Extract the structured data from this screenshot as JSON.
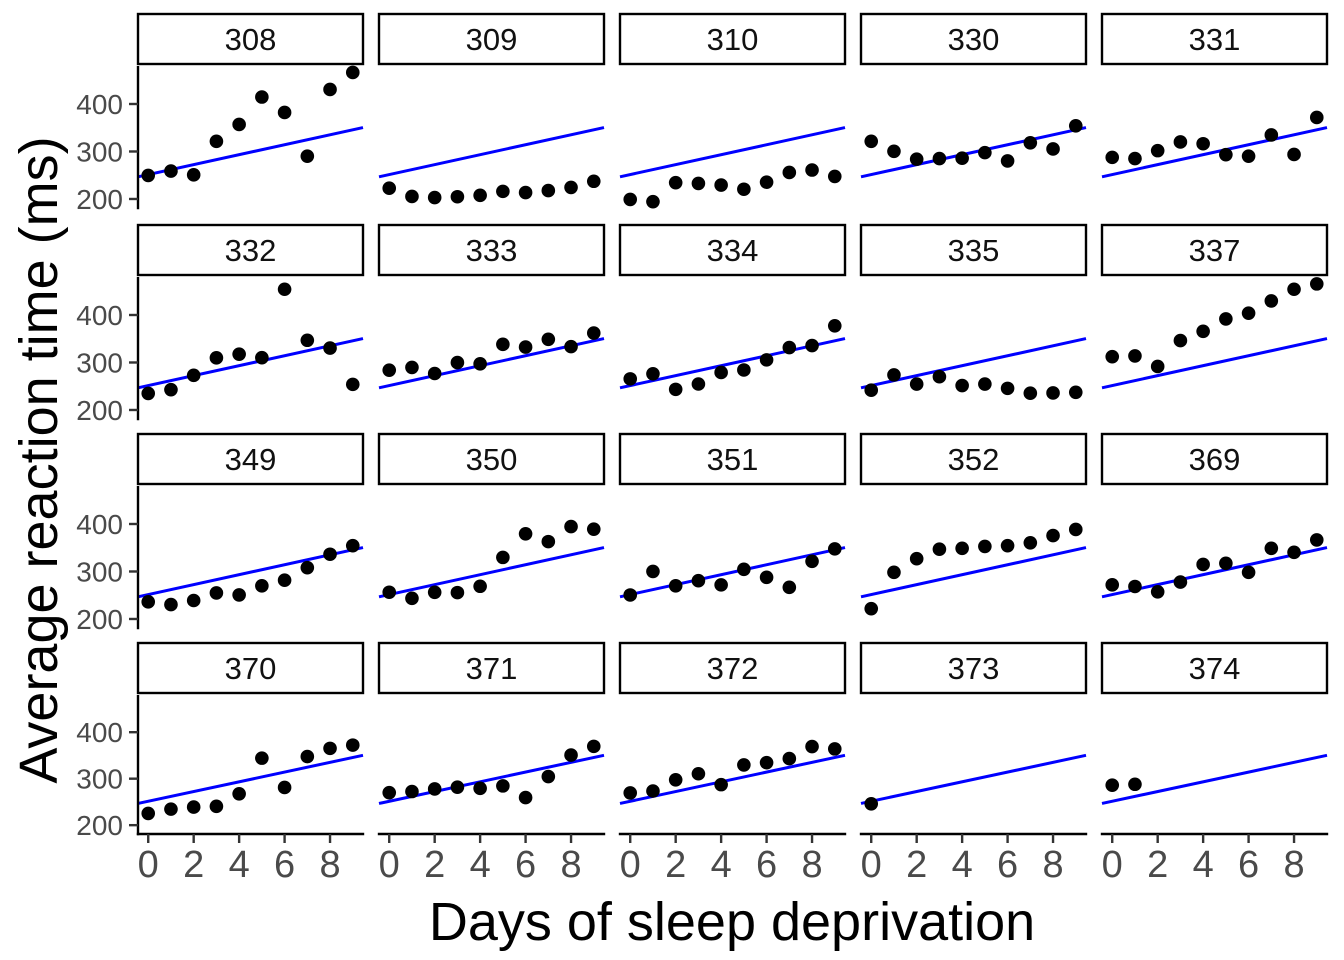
{
  "chart_data": {
    "type": "scatter",
    "title": "",
    "xlabel": "Days of sleep deprivation",
    "ylabel": "Average reaction time (ms)",
    "facet_layout": {
      "rows": 4,
      "cols": 5,
      "strip_position": "top"
    },
    "x_ticks": [
      0,
      2,
      4,
      6,
      8
    ],
    "y_ticks": [
      400,
      300,
      200
    ],
    "x_domain": [
      -0.45,
      9.45
    ],
    "y_domain": [
      181,
      480
    ],
    "grid": "off",
    "legend": "none",
    "reference_line": {
      "description": "identical straight fit line drawn edge-to-edge in every panel",
      "x_left_edge": -0.45,
      "y_at_left_edge": 246.7,
      "x_right_edge": 9.45,
      "y_at_right_edge": 350.3,
      "color": "#0000FF"
    },
    "facets": [
      {
        "label": "308",
        "days": [
          0,
          1,
          2,
          3,
          4,
          5,
          6,
          7,
          8,
          9
        ],
        "reaction_ms": [
          249.6,
          258.7,
          250.8,
          321.4,
          356.9,
          414.7,
          382.2,
          290.1,
          430.6,
          466.4
        ]
      },
      {
        "label": "309",
        "days": [
          0,
          1,
          2,
          3,
          4,
          5,
          6,
          7,
          8,
          9
        ],
        "reaction_ms": [
          222.7,
          205.3,
          203.0,
          204.7,
          207.7,
          216.0,
          213.6,
          217.7,
          224.3,
          237.3
        ]
      },
      {
        "label": "310",
        "days": [
          0,
          1,
          2,
          3,
          4,
          5,
          6,
          7,
          8,
          9
        ],
        "reaction_ms": [
          199.1,
          194.3,
          234.3,
          232.8,
          229.3,
          220.5,
          235.4,
          255.8,
          261.0,
          247.5
        ]
      },
      {
        "label": "330",
        "days": [
          0,
          1,
          2,
          3,
          4,
          5,
          6,
          7,
          8,
          9
        ],
        "reaction_ms": [
          321.5,
          300.4,
          283.9,
          285.1,
          285.8,
          297.6,
          280.2,
          318.3,
          305.3,
          354.0
        ]
      },
      {
        "label": "331",
        "days": [
          0,
          1,
          2,
          3,
          4,
          5,
          6,
          7,
          8,
          9
        ],
        "reaction_ms": [
          287.6,
          285.0,
          301.8,
          320.1,
          316.3,
          293.3,
          290.1,
          334.8,
          293.7,
          371.6
        ]
      },
      {
        "label": "332",
        "days": [
          0,
          1,
          2,
          3,
          4,
          5,
          6,
          7,
          8,
          9
        ],
        "reaction_ms": [
          234.9,
          242.8,
          273.0,
          309.8,
          317.5,
          310.0,
          454.2,
          346.8,
          330.3,
          253.9
        ]
      },
      {
        "label": "333",
        "days": [
          0,
          1,
          2,
          3,
          4,
          5,
          6,
          7,
          8,
          9
        ],
        "reaction_ms": [
          283.8,
          289.6,
          276.8,
          299.8,
          297.2,
          338.2,
          332.4,
          348.8,
          333.4,
          362.0
        ]
      },
      {
        "label": "334",
        "days": [
          0,
          1,
          2,
          3,
          4,
          5,
          6,
          7,
          8,
          9
        ],
        "reaction_ms": [
          265.5,
          276.2,
          243.4,
          254.7,
          279.0,
          284.2,
          305.5,
          331.5,
          335.7,
          377.3
        ]
      },
      {
        "label": "335",
        "days": [
          0,
          1,
          2,
          3,
          4,
          5,
          6,
          7,
          8,
          9
        ],
        "reaction_ms": [
          241.6,
          273.9,
          254.5,
          270.0,
          251.5,
          254.6,
          245.5,
          235.3,
          235.8,
          237.2
        ]
      },
      {
        "label": "337",
        "days": [
          0,
          1,
          2,
          3,
          4,
          5,
          6,
          7,
          8,
          9
        ],
        "reaction_ms": [
          312.3,
          313.8,
          291.6,
          346.1,
          365.7,
          391.8,
          403.9,
          429.7,
          454.2,
          465.5
        ]
      },
      {
        "label": "349",
        "days": [
          0,
          1,
          2,
          3,
          4,
          5,
          6,
          7,
          8,
          9
        ],
        "reaction_ms": [
          236.1,
          230.3,
          238.9,
          254.9,
          250.7,
          269.8,
          281.6,
          308.1,
          336.3,
          354.4
        ]
      },
      {
        "label": "350",
        "days": [
          0,
          1,
          2,
          3,
          4,
          5,
          6,
          7,
          8,
          9
        ],
        "reaction_ms": [
          256.3,
          243.5,
          256.2,
          255.5,
          268.9,
          329.7,
          379.4,
          362.9,
          394.5,
          389.1
        ]
      },
      {
        "label": "351",
        "days": [
          0,
          1,
          2,
          3,
          4,
          5,
          6,
          7,
          8,
          9
        ],
        "reaction_ms": [
          250.5,
          300.1,
          269.9,
          280.6,
          271.8,
          304.6,
          287.7,
          266.6,
          321.5,
          347.6
        ]
      },
      {
        "label": "352",
        "days": [
          0,
          1,
          2,
          3,
          4,
          5,
          6,
          7,
          8,
          9
        ],
        "reaction_ms": [
          221.7,
          298.2,
          326.9,
          346.9,
          348.7,
          352.8,
          354.4,
          360.4,
          375.6,
          388.5
        ]
      },
      {
        "label": "369",
        "days": [
          0,
          1,
          2,
          3,
          4,
          5,
          6,
          7,
          8,
          9
        ],
        "reaction_ms": [
          271.9,
          268.4,
          257.2,
          277.7,
          314.8,
          317.2,
          298.2,
          348.8,
          340.3,
          366.5
        ]
      },
      {
        "label": "370",
        "days": [
          0,
          1,
          2,
          3,
          4,
          5,
          6,
          7,
          8,
          9
        ],
        "reaction_ms": [
          225.3,
          234.5,
          238.9,
          240.5,
          267.5,
          344.2,
          281.1,
          347.6,
          365.2,
          372.2
        ]
      },
      {
        "label": "371",
        "days": [
          0,
          1,
          2,
          3,
          4,
          5,
          6,
          7,
          8,
          9
        ],
        "reaction_ms": [
          269.9,
          272.4,
          277.9,
          281.8,
          279.2,
          284.5,
          259.3,
          304.6,
          350.8,
          369.5
        ]
      },
      {
        "label": "372",
        "days": [
          0,
          1,
          2,
          3,
          4,
          5,
          6,
          7,
          8,
          9
        ],
        "reaction_ms": [
          269.4,
          273.5,
          297.6,
          310.6,
          287.2,
          329.6,
          334.5,
          343.2,
          369.1,
          364.1
        ]
      },
      {
        "label": "373",
        "days": [
          0
        ],
        "reaction_ms": [
          246.0
        ]
      },
      {
        "label": "374",
        "days": [
          0,
          1
        ],
        "reaction_ms": [
          286.0,
          288.0
        ]
      }
    ],
    "colors": {
      "point": "#000000",
      "line": "#0000FF",
      "axis_line": "#000000",
      "tick_mark": "#333333",
      "tick_label": "#4a4a4a",
      "strip_border": "#000000",
      "strip_background": "#ffffff",
      "panel_background": "#ffffff",
      "title_text": "#000000"
    }
  }
}
